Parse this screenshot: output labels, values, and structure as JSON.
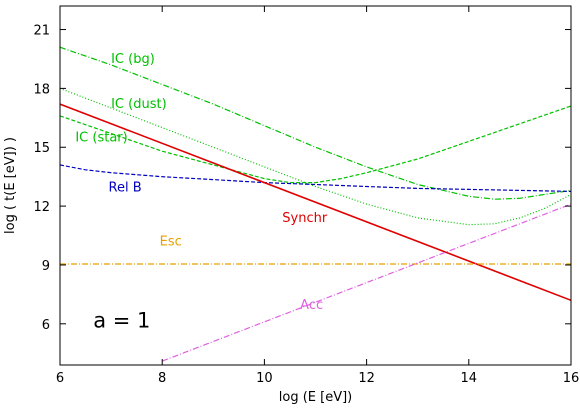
{
  "chart_data": {
    "type": "line",
    "xlabel": "log (E [eV])",
    "ylabel": "log ( t(E [eV]) )",
    "xlim": [
      6,
      16
    ],
    "ylim": [
      3.9,
      22.2
    ],
    "xticks": [
      "6",
      "8",
      "10",
      "12",
      "14",
      "16"
    ],
    "yticks": [
      "6",
      "9",
      "12",
      "15",
      "18",
      "21"
    ],
    "grid": false,
    "legend": "none",
    "annotation": "a = 1",
    "series": [
      {
        "name": "IC (bg)",
        "color": "#00c000",
        "dash": "dashdot",
        "x": [
          6,
          7,
          8,
          9,
          10,
          11,
          12,
          13,
          14,
          14.5,
          15,
          15.5,
          16
        ],
        "y": [
          20.1,
          19.2,
          18.2,
          17.2,
          16.1,
          15.0,
          14.0,
          13.1,
          12.5,
          12.35,
          12.4,
          12.6,
          12.8
        ]
      },
      {
        "name": "IC (dust)",
        "color": "#00c000",
        "dash": "dotted",
        "x": [
          6,
          7,
          8,
          9,
          10,
          11,
          12,
          13,
          14,
          14.5,
          15,
          15.5,
          16
        ],
        "y": [
          18.0,
          17.0,
          16.0,
          15.0,
          14.0,
          13.0,
          12.1,
          11.4,
          11.05,
          11.1,
          11.4,
          11.9,
          12.6
        ]
      },
      {
        "name": "IC (star)",
        "color": "#00c000",
        "dash": "dashed",
        "x": [
          6,
          7,
          8,
          9,
          10,
          10.5,
          11,
          11.5,
          12,
          13,
          14,
          15,
          16
        ],
        "y": [
          16.6,
          15.7,
          14.8,
          14.1,
          13.4,
          13.2,
          13.2,
          13.4,
          13.7,
          14.4,
          15.3,
          16.2,
          17.1
        ]
      },
      {
        "name": "Rel B",
        "color": "#0000c0",
        "dash": "dashed",
        "x": [
          6,
          6.5,
          7,
          8,
          9,
          10,
          11,
          12,
          13,
          14,
          15,
          16
        ],
        "y": [
          14.1,
          13.85,
          13.7,
          13.5,
          13.35,
          13.2,
          13.1,
          13.0,
          12.9,
          12.85,
          12.8,
          12.75
        ]
      },
      {
        "name": "Synchr",
        "color": "#e00000",
        "dash": "solid",
        "x": [
          6,
          16
        ],
        "y": [
          17.2,
          7.2
        ]
      },
      {
        "name": "Esc",
        "color": "#e8a000",
        "dash": "dashdot",
        "x": [
          6,
          16
        ],
        "y": [
          9.05,
          9.05
        ]
      },
      {
        "name": "Acc",
        "color": "#e060e0",
        "dash": "dashdot",
        "x": [
          8,
          16
        ],
        "y": [
          4.1,
          12.1
        ]
      }
    ],
    "labels": [
      {
        "text": "IC (bg)",
        "x": 7.0,
        "y": 19.3,
        "color": "#00c000"
      },
      {
        "text": "IC (dust)",
        "x": 7.0,
        "y": 17.0,
        "color": "#00c000"
      },
      {
        "text": "IC (star)",
        "x": 6.3,
        "y": 15.3,
        "color": "#00c000"
      },
      {
        "text": "Rel B",
        "x": 6.95,
        "y": 12.75,
        "color": "#0000c0"
      },
      {
        "text": "Synchr",
        "x": 10.35,
        "y": 11.2,
        "color": "#e00000"
      },
      {
        "text": "Esc",
        "x": 7.95,
        "y": 10.0,
        "color": "#e8a000"
      },
      {
        "text": "Acc",
        "x": 10.7,
        "y": 6.75,
        "color": "#e060e0"
      }
    ]
  }
}
